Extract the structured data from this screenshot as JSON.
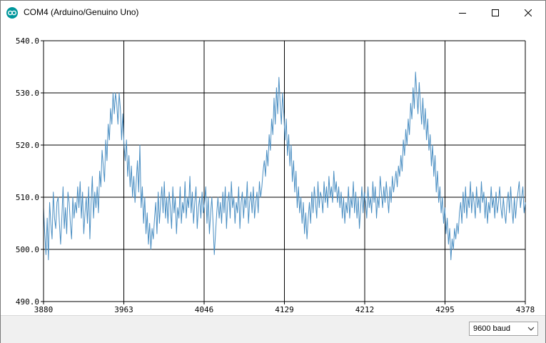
{
  "window": {
    "title": "COM4 (Arduino/Genuino Uno)",
    "app_icon": "arduino-logo-icon",
    "controls": [
      "minimize-icon",
      "maximize-icon",
      "close-icon"
    ]
  },
  "serial_plotter": {
    "baud_rate": "9600 baud"
  },
  "chart_data": {
    "type": "line",
    "ylim": [
      490,
      540
    ],
    "xlim": [
      3880,
      4378
    ],
    "y_ticks": [
      "490.0",
      "500.0",
      "510.0",
      "520.0",
      "530.0",
      "540.0"
    ],
    "x_ticks": [
      "3880",
      "3963",
      "4046",
      "4129",
      "4212",
      "4295",
      "4378"
    ],
    "grid": true,
    "series_color": "#4a8ec2",
    "series": [
      {
        "values": [
          508,
          503,
          499,
          506,
          498,
          509,
          505,
          502,
          511,
          506,
          504,
          509,
          510,
          505,
          501,
          506,
          512,
          504,
          508,
          503,
          511,
          509,
          505,
          502,
          510,
          506,
          509,
          507,
          512,
          508,
          513,
          506,
          511,
          503,
          507,
          510,
          505,
          512,
          502,
          509,
          514,
          506,
          511,
          508,
          512,
          507,
          515,
          512,
          519,
          516,
          513,
          521,
          517,
          524,
          521,
          527,
          524,
          530,
          526,
          530,
          528,
          524,
          530,
          527,
          521,
          526,
          520,
          517,
          521,
          514,
          518,
          512,
          516,
          510,
          514,
          509,
          513,
          517,
          511,
          520,
          508,
          512,
          505,
          510,
          503,
          507,
          501,
          505,
          500,
          504,
          502,
          506,
          509,
          503,
          511,
          505,
          509,
          512,
          507,
          513,
          506,
          510,
          505,
          511,
          508,
          504,
          512,
          507,
          510,
          503,
          508,
          506,
          512,
          505,
          509,
          507,
          513,
          506,
          510,
          508,
          514,
          507,
          511,
          505,
          509,
          512,
          504,
          508,
          510,
          506,
          511,
          507,
          509,
          512,
          505,
          510,
          503,
          507,
          510,
          505,
          499,
          503,
          507,
          510,
          506,
          509,
          505,
          511,
          507,
          512,
          504,
          509,
          511,
          506,
          513,
          508,
          510,
          505,
          509,
          507,
          512,
          504,
          509,
          511,
          506,
          510,
          508,
          513,
          505,
          509,
          511,
          507,
          512,
          506,
          509,
          511,
          507,
          513,
          510,
          512,
          515,
          517,
          514,
          519,
          516,
          522,
          519,
          525,
          522,
          529,
          524,
          531,
          526,
          533,
          528,
          524,
          530,
          526,
          521,
          525,
          518,
          522,
          516,
          520,
          513,
          517,
          511,
          515,
          508,
          512,
          507,
          510,
          505,
          509,
          503,
          507,
          502,
          506,
          509,
          505,
          511,
          507,
          512,
          509,
          506,
          513,
          508,
          511,
          510,
          507,
          513,
          509,
          512,
          508,
          514,
          510,
          512,
          509,
          515,
          511,
          513,
          509,
          512,
          508,
          511,
          506,
          510,
          505,
          509,
          507,
          512,
          506,
          510,
          508,
          513,
          507,
          511,
          506,
          510,
          504,
          508,
          512,
          507,
          511,
          509,
          506,
          512,
          508,
          510,
          507,
          513,
          509,
          512,
          506,
          510,
          508,
          514,
          511,
          508,
          512,
          509,
          513,
          510,
          507,
          512,
          509,
          514,
          511,
          513,
          515,
          512,
          516,
          514,
          518,
          515,
          521,
          518,
          523,
          520,
          525,
          522,
          528,
          525,
          531,
          527,
          534,
          530,
          526,
          532,
          528,
          524,
          529,
          523,
          527,
          521,
          525,
          519,
          522,
          516,
          520,
          514,
          518,
          511,
          515,
          509,
          512,
          507,
          510,
          505,
          508,
          503,
          506,
          501,
          504,
          498,
          502,
          500,
          504,
          502,
          505,
          503,
          507,
          509,
          505,
          511,
          507,
          512,
          506,
          510,
          508,
          513,
          507,
          511,
          509,
          506,
          512,
          508,
          510,
          507,
          513,
          509,
          511,
          506,
          510,
          505,
          509,
          507,
          512,
          508,
          510,
          506,
          511,
          507,
          509,
          512,
          508,
          506,
          510,
          507,
          505,
          509,
          511,
          507,
          512,
          508,
          505,
          510,
          506,
          509,
          511,
          513,
          508,
          510,
          512,
          507,
          509
        ]
      }
    ]
  }
}
